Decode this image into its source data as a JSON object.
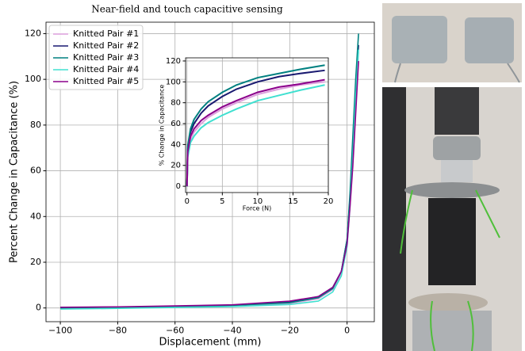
{
  "chart_data": [
    {
      "type": "line",
      "title": "Near-field and touch capacitive sensing",
      "x_label": "Displacement (mm)",
      "y_label": "Percent Change in Capacitance (%)",
      "x": [
        -100,
        -80,
        -60,
        -40,
        -20,
        -10,
        -5,
        -2,
        0,
        1,
        2,
        3,
        4
      ],
      "series": [
        {
          "name": "Knitted Pair #1",
          "color": "#dda0dd",
          "values": [
            0,
            0.3,
            0.6,
            1,
            2,
            4,
            8,
            15,
            28,
            45,
            65,
            90,
            112
          ]
        },
        {
          "name": "Knitted Pair #2",
          "color": "#191970",
          "values": [
            0.2,
            0.4,
            0.7,
            1.2,
            2.5,
            5,
            9,
            16,
            30,
            48,
            70,
            95,
            115
          ]
        },
        {
          "name": "Knitted Pair #3",
          "color": "#008080",
          "values": [
            0,
            0.3,
            0.6,
            1.1,
            2.3,
            4.5,
            8.5,
            16,
            30,
            50,
            75,
            100,
            120
          ]
        },
        {
          "name": "Knitted Pair #4",
          "color": "#40e0d0",
          "values": [
            -0.5,
            -0.2,
            0.2,
            0.6,
            1.5,
            3,
            7,
            14,
            27,
            44,
            66,
            92,
            113
          ]
        },
        {
          "name": "Knitted Pair #5",
          "color": "#8b008b",
          "values": [
            0.3,
            0.5,
            0.9,
            1.4,
            3,
            5,
            9,
            16,
            28,
            44,
            62,
            85,
            108
          ]
        }
      ],
      "xlim": [
        -105,
        9.5
      ],
      "ylim": [
        -6,
        125
      ],
      "xticks": [
        {
          "value": -100,
          "label": "−100"
        },
        {
          "value": -80,
          "label": "−80"
        },
        {
          "value": -60,
          "label": "−60"
        },
        {
          "value": -40,
          "label": "−40"
        },
        {
          "value": -20,
          "label": "−20"
        },
        0
      ],
      "yticks": [
        0,
        20,
        40,
        60,
        80,
        100,
        120
      ],
      "grid": true,
      "legend": "upper left"
    },
    {
      "type": "line",
      "x_label": "Force (N)",
      "y_label": "% Change in Capacitance",
      "x": [
        0,
        0.1,
        0.5,
        1,
        2,
        3,
        5,
        7,
        10,
        13,
        16,
        19.5
      ],
      "series": [
        {
          "color": "#dda0dd",
          "values": [
            0,
            30,
            45,
            52,
            60,
            66,
            74,
            80,
            88,
            93,
            97,
            100
          ]
        },
        {
          "color": "#191970",
          "values": [
            0,
            35,
            52,
            60,
            70,
            77,
            86,
            93,
            100,
            105,
            108,
            111
          ]
        },
        {
          "color": "#008080",
          "values": [
            0,
            38,
            55,
            64,
            74,
            81,
            90,
            97,
            104,
            108,
            112,
            116
          ]
        },
        {
          "color": "#40e0d0",
          "values": [
            0,
            28,
            42,
            48,
            56,
            61,
            68,
            74,
            82,
            87,
            92,
            97
          ]
        },
        {
          "color": "#8b008b",
          "values": [
            0,
            33,
            48,
            55,
            63,
            68,
            76,
            82,
            90,
            95,
            98,
            102
          ]
        }
      ],
      "xlim": [
        -0.2,
        20
      ],
      "ylim": [
        -6,
        123
      ],
      "xticks": [
        0,
        5,
        10,
        15,
        20
      ],
      "yticks": [
        0,
        20,
        40,
        60,
        80,
        100,
        120
      ],
      "grid": true
    }
  ]
}
